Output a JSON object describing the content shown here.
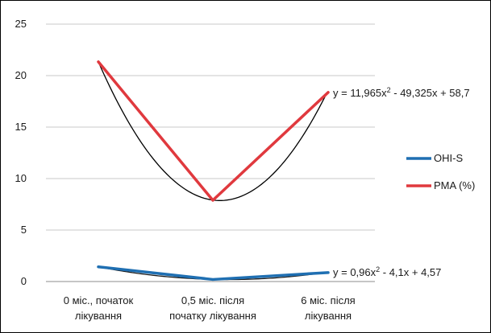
{
  "chart_data": {
    "type": "line",
    "categories": [
      "0 міс., початок лікування",
      "0,5 міс. після початку лікування",
      "6 міс. після лікування"
    ],
    "category_lines": [
      [
        "0 міс., початок",
        "лікування"
      ],
      [
        "0,5 міс. після",
        "початку лікування"
      ],
      [
        "6 міс. після",
        "лікування"
      ]
    ],
    "ylim": [
      0,
      25
    ],
    "yticks": [
      0,
      5,
      10,
      15,
      20,
      25
    ],
    "grid": true,
    "legend_position": "right",
    "series": [
      {
        "name": "OHI-S",
        "values": [
          1.43,
          0.2,
          0.87
        ],
        "color": "#1f6fb2"
      },
      {
        "name": "PMA (%)",
        "values": [
          21.34,
          7.89,
          18.37
        ],
        "color": "#e0393e"
      }
    ],
    "trendlines": [
      {
        "series": "PMA (%)",
        "type": "polynomial",
        "a": 11.965,
        "b": -49.325,
        "c": 58.7,
        "equation_prefix": "y = 11,965x",
        "equation_suffix": " - 49,325x + 58,7",
        "color": "#000000"
      },
      {
        "series": "OHI-S",
        "type": "polynomial",
        "a": 0.96,
        "b": -4.1,
        "c": 4.57,
        "equation_prefix": "y = 0,96x",
        "equation_suffix": " - 4,1x + 4,57",
        "color": "#1a1a1a"
      }
    ]
  }
}
